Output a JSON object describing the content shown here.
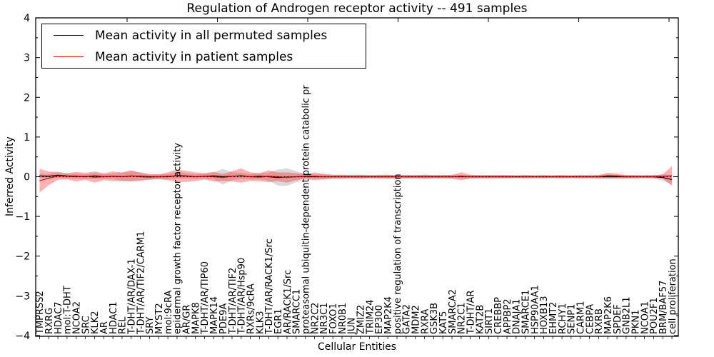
{
  "title": "Regulation of Androgen receptor activity -- 491 samples",
  "axes": {
    "xlabel": "Cellular Entities",
    "ylabel": "Inferred Activity",
    "ytick_labels": [
      "4",
      "3",
      "2",
      "1",
      "0",
      "−1",
      "−2",
      "−3",
      "−4"
    ],
    "ylim": [
      -4,
      4
    ]
  },
  "legend": {
    "items": [
      {
        "label": "Mean activity in all permuted samples",
        "color": "#000000"
      },
      {
        "label": "Mean activity in patient samples",
        "color": "#ff0000"
      }
    ]
  },
  "chart_data": {
    "type": "line",
    "title": "Regulation of Androgen receptor activity -- 491 samples",
    "xlabel": "Cellular Entities",
    "ylabel": "Inferred Activity",
    "ylim": [
      -4,
      4
    ],
    "grid": false,
    "zero_line": "black dotted at y=0",
    "legend_position": "upper left",
    "categories": [
      "TMPRSS2",
      "RXRG",
      "HDAC7",
      "mol:T-DHT",
      "NCOA2",
      "SRC",
      "KLK2",
      "AR",
      "HDAC1",
      "REL",
      "T-DHT/AR/DAX-1",
      "T-DHT/AR/TIF2/CARM1",
      "SRY",
      "MYST2",
      "mol:9cRA",
      "epidermal growth factor receptor activity",
      "AR/GR",
      "MAPK8",
      "T-DHT/AR/TIP60",
      "MAPK14",
      "PDE9A",
      "T-DHT/AR/TIF2",
      "T-DHT/AR/Hsp90",
      "RXRs/9cRA",
      "KLK3",
      "T-DHT/AR/RACK1/Src",
      "EGR1",
      "AR/RACK1/Src",
      "SMARCC1",
      "proteasomal ubiquitin-dependent protein catabolic pr",
      "NR2C2",
      "NR3C1",
      "FOXO1",
      "NR0B1",
      "JUN",
      "ZMIZ2",
      "TRIM24",
      "EP300",
      "MAP2K4",
      "positive regulation of transcription",
      "GATA2",
      "MDM2",
      "RXRA",
      "GSK3B",
      "KAT5",
      "SMARCA2",
      "NR2C1",
      "T-DHT/AR",
      "KAT2B",
      "SIRT1",
      "CREBBP",
      "APPBP2",
      "DNAJA1",
      "SMARCE1",
      "HSP90AA1",
      "HOXB13",
      "EHMT2",
      "RCHY1",
      "SENP1",
      "CARM1",
      "CEBPA",
      "RXRB",
      "MAP2K6",
      "SPDEF",
      "GNB2L1",
      "PKN1",
      "NCOA1",
      "POU2F1",
      "BRM/BAF57",
      "cell proliferation"
    ],
    "series": [
      {
        "name": "mean-permuted",
        "label": "Mean activity in all permuted samples",
        "color": "#000000",
        "band_color": "rgba(128,128,128,0.30)",
        "values": [
          0.02,
          0.01,
          0.04,
          0.02,
          0.01,
          0.0,
          0.02,
          0.0,
          0.01,
          0.0,
          0.02,
          0.01,
          0.0,
          0.0,
          0.0,
          0.03,
          0.02,
          0.0,
          0.01,
          0.02,
          0.0,
          0.01,
          0.02,
          0.0,
          0.01,
          0.0,
          -0.02,
          -0.01,
          0.0,
          0.0,
          0.0,
          0.0,
          0.0,
          0.0,
          0.0,
          0.0,
          0.0,
          0.0,
          0.0,
          0.0,
          0.0,
          0.0,
          0.0,
          0.0,
          0.0,
          0.0,
          0.0,
          0.0,
          0.0,
          0.0,
          0.0,
          0.0,
          0.0,
          0.0,
          0.0,
          0.0,
          0.0,
          0.0,
          0.0,
          0.0,
          0.0,
          0.0,
          0.0,
          0.0,
          0.0,
          0.0,
          0.0,
          0.0,
          -0.02,
          -0.07
        ],
        "band_halfwidth": [
          0.05,
          0.06,
          0.07,
          0.06,
          0.07,
          0.06,
          0.08,
          0.06,
          0.07,
          0.1,
          0.12,
          0.1,
          0.07,
          0.06,
          0.07,
          0.08,
          0.07,
          0.06,
          0.07,
          0.09,
          0.2,
          0.1,
          0.08,
          0.07,
          0.08,
          0.1,
          0.2,
          0.22,
          0.14,
          0.08,
          0.06,
          0.06,
          0.05,
          0.05,
          0.05,
          0.05,
          0.04,
          0.05,
          0.05,
          0.04,
          0.05,
          0.04,
          0.05,
          0.04,
          0.05,
          0.04,
          0.05,
          0.04,
          0.04,
          0.04,
          0.04,
          0.04,
          0.04,
          0.04,
          0.04,
          0.04,
          0.04,
          0.04,
          0.04,
          0.04,
          0.05,
          0.05,
          0.06,
          0.05,
          0.05,
          0.04,
          0.05,
          0.04,
          0.08,
          0.12
        ]
      },
      {
        "name": "mean-patient",
        "label": "Mean activity in patient samples",
        "color": "#ff0000",
        "band_color": "rgba(255,0,0,0.30)",
        "values": [
          -0.1,
          -0.04,
          0.02,
          0.01,
          0.0,
          0.01,
          -0.01,
          0.0,
          0.01,
          0.0,
          0.02,
          0.0,
          -0.01,
          0.0,
          0.01,
          0.02,
          0.01,
          0.0,
          0.01,
          0.0,
          -0.02,
          0.01,
          0.03,
          0.0,
          -0.01,
          0.01,
          0.0,
          -0.02,
          0.0,
          0.01,
          0.01,
          0.0,
          0.0,
          0.0,
          0.0,
          0.0,
          0.0,
          0.0,
          0.0,
          0.0,
          0.0,
          0.0,
          0.0,
          0.0,
          0.0,
          0.0,
          0.01,
          0.0,
          0.0,
          0.0,
          0.0,
          0.0,
          0.0,
          0.0,
          0.0,
          0.0,
          0.0,
          0.0,
          0.0,
          0.0,
          0.0,
          0.0,
          0.03,
          0.02,
          0.0,
          0.0,
          0.0,
          0.0,
          0.01,
          0.02
        ],
        "band_halfwidth": [
          0.3,
          0.17,
          0.1,
          0.08,
          0.12,
          0.09,
          0.14,
          0.09,
          0.12,
          0.11,
          0.14,
          0.1,
          0.07,
          0.06,
          0.1,
          0.16,
          0.14,
          0.11,
          0.08,
          0.12,
          0.09,
          0.13,
          0.18,
          0.11,
          0.1,
          0.15,
          0.11,
          0.13,
          0.09,
          0.06,
          0.1,
          0.07,
          0.05,
          0.05,
          0.04,
          0.05,
          0.04,
          0.04,
          0.05,
          0.04,
          0.04,
          0.04,
          0.05,
          0.04,
          0.04,
          0.05,
          0.1,
          0.05,
          0.04,
          0.04,
          0.04,
          0.04,
          0.03,
          0.04,
          0.03,
          0.04,
          0.03,
          0.04,
          0.03,
          0.04,
          0.03,
          0.04,
          0.07,
          0.06,
          0.04,
          0.04,
          0.03,
          0.04,
          0.05,
          0.25
        ]
      }
    ]
  }
}
